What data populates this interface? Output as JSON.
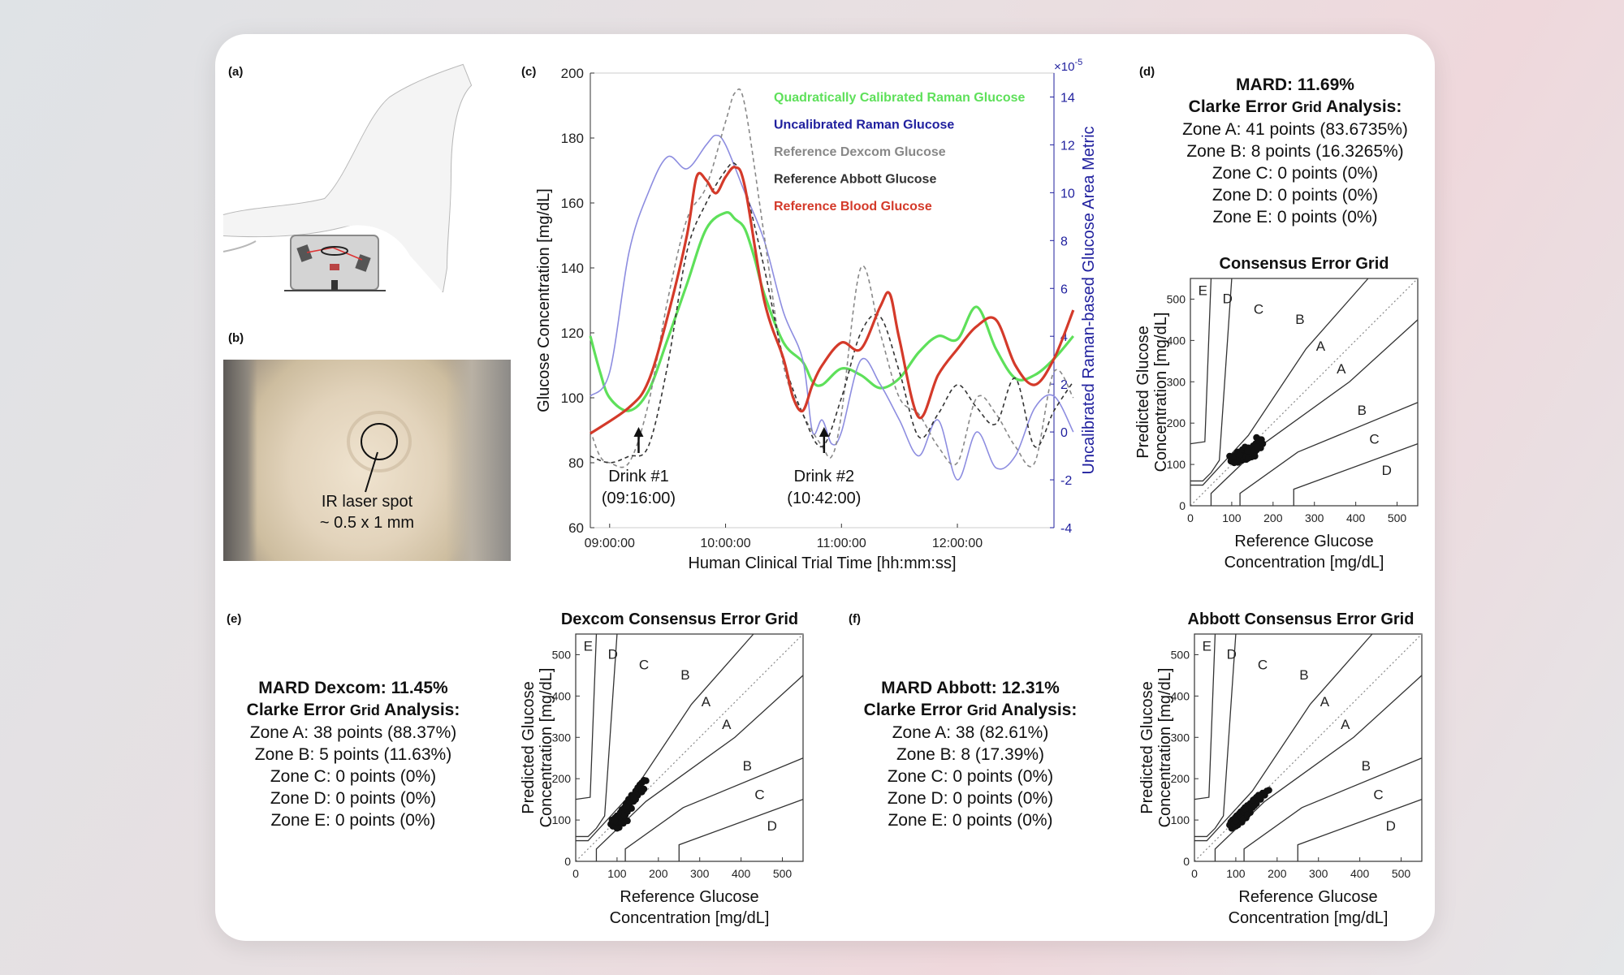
{
  "panels": {
    "a": "(a)",
    "b": "(b)",
    "c": "(c)",
    "d": "(d)",
    "e": "(e)",
    "f": "(f)"
  },
  "photo": {
    "spot_label_1": "IR laser spot",
    "spot_label_2": "~ 0.5 x 1 mm"
  },
  "stats_d": {
    "mard": "MARD: 11.69%",
    "clarke_title_1": "Clarke Error ",
    "clarke_title_2": "Grid",
    "clarke_title_3": " Analysis:",
    "zones": [
      "Zone A: 41 points (83.6735%)",
      "Zone B: 8 points (16.3265%)",
      "Zone C: 0 points (0%)",
      "Zone D: 0 points (0%)",
      "Zone E: 0 points (0%)"
    ]
  },
  "stats_e": {
    "mard": "MARD Dexcom: 11.45%",
    "clarke_title_1": "Clarke Error ",
    "clarke_title_2": "Grid",
    "clarke_title_3": " Analysis:",
    "zones": [
      "Zone A: 38 points (88.37%)",
      "Zone B: 5 points (11.63%)",
      "Zone C: 0 points (0%)",
      "Zone D: 0 points (0%)",
      "Zone E: 0 points (0%)"
    ]
  },
  "stats_f": {
    "mard": "MARD Abbott: 12.31%",
    "clarke_title_1": "Clarke Error ",
    "clarke_title_2": "Grid",
    "clarke_title_3": " Analysis:",
    "zones": [
      "Zone A: 38 (82.61%)",
      "Zone B: 8 (17.39%)",
      "Zone C: 0 points (0%)",
      "Zone D: 0 points (0%)",
      "Zone E: 0 points (0%)"
    ]
  },
  "colors": {
    "green": "#5ee05a",
    "blue_dark": "#1f1f9e",
    "blue_light": "#8d8de0",
    "dexcom": "#888888",
    "abbott": "#333333",
    "blood": "#d43a2a"
  },
  "chart_data": [
    {
      "type": "line",
      "xlabel": "Human Clinical Trial Time [hh:mm:ss]",
      "ylabel": "Glucose Concentration [mg/dL]",
      "y2label": "Uncalibrated Raman-based Glucose Area Metric",
      "y2_scale_label": "×10",
      "y2_scale_exp": "-5",
      "xlim": [
        "08:50:00",
        "12:50:00"
      ],
      "ylim": [
        60,
        200
      ],
      "y2lim": [
        -4,
        15
      ],
      "xticks": [
        "09:00:00",
        "10:00:00",
        "11:00:00",
        "12:00:00"
      ],
      "yticks": [
        60,
        80,
        100,
        120,
        140,
        160,
        180,
        200
      ],
      "y2ticks": [
        -4,
        -2,
        0,
        2,
        4,
        6,
        8,
        10,
        12,
        14
      ],
      "legend": [
        {
          "name": "Quadratically Calibrated Raman Glucose",
          "color": "#5ee05a"
        },
        {
          "name": "Uncalibrated Raman Glucose",
          "color": "#1f1f9e"
        },
        {
          "name": "Reference Dexcom Glucose",
          "color": "#888888"
        },
        {
          "name": "Reference Abbott Glucose",
          "color": "#333333"
        },
        {
          "name": "Reference Blood Glucose",
          "color": "#d43a2a"
        }
      ],
      "annotations": [
        {
          "x_min": 15,
          "y": 83,
          "line1": "Drink #1",
          "line2": "(09:16:00)"
        },
        {
          "x_min": 111,
          "y": 83,
          "line1": "Drink #2",
          "line2": "(10:42:00)"
        }
      ],
      "series": [
        {
          "name": "Quadratically Calibrated Raman Glucose",
          "axis": "left",
          "color": "#5ee05a",
          "style": "solid",
          "x": [
            -10,
            -5,
            0,
            10,
            20,
            30,
            40,
            50,
            60,
            65,
            70,
            75,
            80,
            90,
            100,
            105,
            110,
            120,
            130,
            140,
            150,
            160,
            170,
            180,
            190,
            200,
            210,
            220,
            230,
            240
          ],
          "y": [
            119,
            108,
            100,
            96,
            102,
            118,
            135,
            152,
            157,
            155,
            152,
            143,
            132,
            117,
            111,
            105,
            104,
            109,
            107,
            103,
            106,
            114,
            119,
            118,
            128,
            115,
            106,
            107,
            112,
            119
          ]
        },
        {
          "name": "Uncalibrated Raman Glucose",
          "axis": "right",
          "color": "#8d8de0",
          "style": "solid",
          "x": [
            -10,
            0,
            10,
            20,
            30,
            40,
            50,
            55,
            60,
            70,
            80,
            90,
            100,
            105,
            110,
            115,
            120,
            130,
            140,
            150,
            160,
            170,
            180,
            190,
            200,
            210,
            220,
            230,
            240
          ],
          "y": [
            1.5,
            2.5,
            7.5,
            10,
            11.5,
            11,
            12,
            12.4,
            12,
            10,
            8,
            5,
            3,
            0,
            0.5,
            -0.5,
            0,
            3,
            2,
            0.5,
            -1,
            0.5,
            -2,
            0,
            -1.5,
            -1,
            1,
            1.5,
            0
          ]
        },
        {
          "name": "Reference Dexcom Glucose",
          "axis": "left",
          "color": "#888888",
          "style": "dashed",
          "x": [
            -10,
            -5,
            0,
            10,
            20,
            30,
            40,
            50,
            60,
            65,
            70,
            80,
            90,
            100,
            110,
            115,
            120,
            130,
            140,
            150,
            160,
            170,
            180,
            190,
            200,
            210,
            220,
            230,
            240
          ],
          "y": [
            90,
            82,
            80,
            80,
            98,
            130,
            155,
            165,
            185,
            194,
            190,
            150,
            110,
            95,
            85,
            82,
            95,
            140,
            120,
            100,
            95,
            85,
            80,
            100,
            95,
            85,
            80,
            108,
            100
          ]
        },
        {
          "name": "Reference Abbott Glucose",
          "axis": "left",
          "color": "#333333",
          "style": "dashed",
          "x": [
            -10,
            0,
            10,
            20,
            30,
            40,
            50,
            60,
            65,
            70,
            80,
            90,
            100,
            110,
            120,
            130,
            140,
            150,
            160,
            170,
            180,
            190,
            200,
            210,
            220,
            230,
            240
          ],
          "y": [
            82,
            80,
            82,
            85,
            110,
            145,
            160,
            170,
            172,
            165,
            140,
            112,
            95,
            85,
            100,
            120,
            125,
            108,
            88,
            95,
            104,
            97,
            92,
            106,
            85,
            96,
            105
          ]
        },
        {
          "name": "Reference Blood Glucose",
          "axis": "left",
          "color": "#d43a2a",
          "style": "solid",
          "x": [
            -10,
            10,
            20,
            30,
            40,
            45,
            50,
            55,
            60,
            65,
            70,
            80,
            90,
            95,
            100,
            105,
            110,
            120,
            130,
            140,
            145,
            150,
            160,
            170,
            180,
            190,
            200,
            210,
            220,
            230,
            240
          ],
          "y": [
            89,
            97,
            105,
            125,
            150,
            168,
            167,
            163,
            168,
            171,
            165,
            130,
            112,
            100,
            96,
            104,
            110,
            117,
            115,
            128,
            132,
            118,
            94,
            107,
            115,
            122,
            124,
            110,
            104,
            112,
            127
          ]
        }
      ]
    },
    {
      "type": "scatter",
      "title": "Consensus Error Grid",
      "xlabel_1": "Reference Glucose",
      "xlabel_2": "Concentration [mg/dL]",
      "ylabel_1": "Predicted Glucose",
      "ylabel_2": "Concentration [mg/dL]",
      "xlim": [
        0,
        550
      ],
      "ylim": [
        0,
        550
      ],
      "ticks": [
        0,
        100,
        200,
        300,
        400,
        500
      ],
      "zone_labels": [
        "E",
        "D",
        "C",
        "B",
        "A",
        "A",
        "B",
        "C",
        "D"
      ],
      "points": [
        [
          95,
          120
        ],
        [
          100,
          110
        ],
        [
          105,
          118
        ],
        [
          110,
          112
        ],
        [
          112,
          125
        ],
        [
          115,
          105
        ],
        [
          118,
          130
        ],
        [
          120,
          115
        ],
        [
          122,
          120
        ],
        [
          125,
          110
        ],
        [
          128,
          125
        ],
        [
          130,
          135
        ],
        [
          132,
          118
        ],
        [
          135,
          112
        ],
        [
          138,
          128
        ],
        [
          140,
          140
        ],
        [
          142,
          122
        ],
        [
          145,
          130
        ],
        [
          148,
          118
        ],
        [
          150,
          138
        ],
        [
          152,
          145
        ],
        [
          155,
          128
        ],
        [
          158,
          150
        ],
        [
          160,
          135
        ],
        [
          165,
          145
        ],
        [
          168,
          155
        ],
        [
          170,
          140
        ],
        [
          172,
          160
        ],
        [
          175,
          150
        ],
        [
          160,
          165
        ],
        [
          108,
          122
        ],
        [
          112,
          108
        ],
        [
          118,
          116
        ],
        [
          124,
          128
        ],
        [
          128,
          112
        ],
        [
          134,
          120
        ],
        [
          140,
          115
        ],
        [
          146,
          126
        ],
        [
          152,
          132
        ],
        [
          156,
          120
        ],
        [
          162,
          142
        ],
        [
          98,
          108
        ],
        [
          102,
          116
        ],
        [
          106,
          104
        ],
        [
          114,
          130
        ],
        [
          120,
          124
        ],
        [
          126,
          136
        ],
        [
          132,
          142
        ],
        [
          138,
          132
        ]
      ]
    },
    {
      "type": "scatter",
      "title": "Dexcom Consensus Error Grid",
      "xlabel_1": "Reference Glucose",
      "xlabel_2": "Concentration [mg/dL]",
      "ylabel_1": "Predicted Glucose",
      "ylabel_2": "Concentration [mg/dL]",
      "xlim": [
        0,
        550
      ],
      "ylim": [
        0,
        550
      ],
      "ticks": [
        0,
        100,
        200,
        300,
        400,
        500
      ],
      "zone_labels": [
        "E",
        "D",
        "C",
        "B",
        "A",
        "A",
        "B",
        "C",
        "D"
      ],
      "points": [
        [
          85,
          90
        ],
        [
          88,
          100
        ],
        [
          90,
          85
        ],
        [
          92,
          95
        ],
        [
          95,
          105
        ],
        [
          98,
          92
        ],
        [
          100,
          110
        ],
        [
          102,
          88
        ],
        [
          105,
          100
        ],
        [
          108,
          118
        ],
        [
          110,
          95
        ],
        [
          112,
          125
        ],
        [
          115,
          105
        ],
        [
          118,
          130
        ],
        [
          120,
          112
        ],
        [
          122,
          140
        ],
        [
          125,
          120
        ],
        [
          128,
          150
        ],
        [
          130,
          135
        ],
        [
          135,
          160
        ],
        [
          140,
          145
        ],
        [
          145,
          170
        ],
        [
          150,
          160
        ],
        [
          155,
          185
        ],
        [
          160,
          190
        ],
        [
          165,
          175
        ],
        [
          170,
          195
        ],
        [
          105,
          82
        ],
        [
          110,
          108
        ],
        [
          115,
          92
        ],
        [
          120,
          122
        ],
        [
          125,
          98
        ],
        [
          130,
          140
        ],
        [
          135,
          128
        ],
        [
          140,
          155
        ],
        [
          95,
          98
        ],
        [
          100,
          80
        ],
        [
          118,
          110
        ],
        [
          123,
          132
        ],
        [
          145,
          150
        ],
        [
          150,
          178
        ],
        [
          160,
          168
        ],
        [
          165,
          196
        ]
      ]
    },
    {
      "type": "scatter",
      "title": "Abbott Consensus Error Grid",
      "xlabel_1": "Reference Glucose",
      "xlabel_2": "Concentration [mg/dL]",
      "ylabel_1": "Predicted Glucose",
      "ylabel_2": "Concentration [mg/dL]",
      "xlim": [
        0,
        550
      ],
      "ylim": [
        0,
        550
      ],
      "ticks": [
        0,
        100,
        200,
        300,
        400,
        500
      ],
      "zone_labels": [
        "E",
        "D",
        "C",
        "B",
        "A",
        "A",
        "B",
        "C",
        "D"
      ],
      "points": [
        [
          85,
          88
        ],
        [
          88,
          95
        ],
        [
          90,
          80
        ],
        [
          92,
          100
        ],
        [
          95,
          92
        ],
        [
          98,
          105
        ],
        [
          100,
          85
        ],
        [
          102,
          110
        ],
        [
          105,
          95
        ],
        [
          108,
          115
        ],
        [
          110,
          100
        ],
        [
          112,
          120
        ],
        [
          115,
          108
        ],
        [
          118,
          125
        ],
        [
          120,
          112
        ],
        [
          122,
          130
        ],
        [
          125,
          118
        ],
        [
          128,
          135
        ],
        [
          130,
          122
        ],
        [
          135,
          140
        ],
        [
          140,
          130
        ],
        [
          145,
          150
        ],
        [
          150,
          140
        ],
        [
          155,
          160
        ],
        [
          160,
          150
        ],
        [
          165,
          165
        ],
        [
          170,
          160
        ],
        [
          175,
          170
        ],
        [
          180,
          172
        ],
        [
          105,
          88
        ],
        [
          110,
          105
        ],
        [
          115,
          95
        ],
        [
          120,
          118
        ],
        [
          125,
          105
        ],
        [
          130,
          128
        ],
        [
          135,
          118
        ],
        [
          140,
          142
        ],
        [
          145,
          135
        ],
        [
          150,
          155
        ],
        [
          95,
          90
        ],
        [
          100,
          98
        ],
        [
          118,
          102
        ],
        [
          123,
          126
        ],
        [
          128,
          112
        ],
        [
          142,
          148
        ],
        [
          158,
          158
        ]
      ]
    }
  ]
}
